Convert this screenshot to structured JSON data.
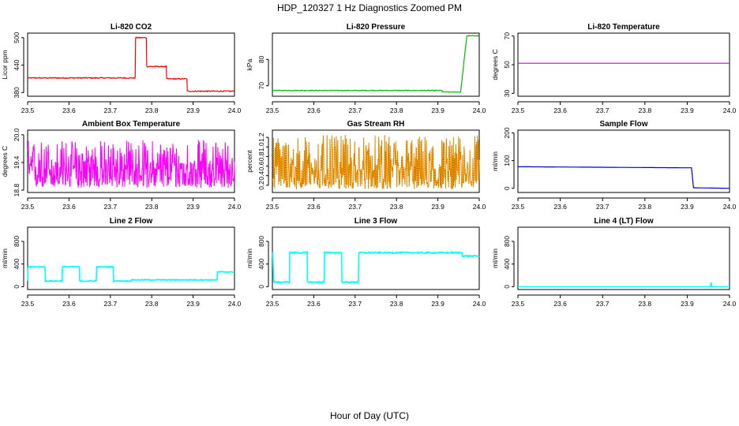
{
  "title": "HDP_120327  1 Hz Diagnostics Zoomed PM",
  "xlabel": "Hour of Day (UTC)",
  "chart_data": [
    {
      "type": "line",
      "title": "Li-820 CO2",
      "ylabel": "Licor ppm",
      "color": "#ff0000",
      "xlim": [
        23.5,
        24.0
      ],
      "ylim": [
        372,
        510
      ],
      "xticks": [
        "23.5",
        "23.6",
        "23.7",
        "23.8",
        "23.9",
        "24.0"
      ],
      "yticks": [
        "380",
        "440",
        "500"
      ],
      "ytick_values": [
        380,
        440,
        500
      ],
      "noise": 1.2,
      "series": [
        {
          "x": [
            23.5,
            23.76,
            23.761,
            23.787,
            23.788,
            23.835,
            23.836,
            23.885,
            23.886,
            24.0
          ],
          "y": [
            412,
            412,
            500,
            500,
            437,
            437,
            410,
            410,
            383,
            383
          ]
        }
      ]
    },
    {
      "type": "line",
      "title": "Li-820 Pressure",
      "ylabel": "kPa",
      "color": "#00bb00",
      "xlim": [
        23.5,
        24.0
      ],
      "ylim": [
        66,
        90
      ],
      "xticks": [
        "23.5",
        "23.6",
        "23.7",
        "23.8",
        "23.9",
        "24.0"
      ],
      "yticks": [
        "70",
        "80"
      ],
      "ytick_values": [
        70,
        80
      ],
      "noise": 0.12,
      "series": [
        {
          "x": [
            23.5,
            23.91,
            23.911,
            23.955,
            23.97,
            24.0
          ],
          "y": [
            68.2,
            68.2,
            67.6,
            67.6,
            89,
            89
          ]
        }
      ]
    },
    {
      "type": "line",
      "title": "Li-820 Temperature",
      "ylabel": "degrees C",
      "color": "#cc00cc",
      "xlim": [
        23.5,
        24.0
      ],
      "ylim": [
        28,
        72
      ],
      "xticks": [
        "23.5",
        "23.6",
        "23.7",
        "23.8",
        "23.9",
        "24.0"
      ],
      "yticks": [
        "30",
        "50",
        "70"
      ],
      "ytick_values": [
        30,
        50,
        70
      ],
      "noise": 0,
      "series": [
        {
          "x": [
            23.5,
            24.0
          ],
          "y": [
            51,
            51
          ]
        }
      ]
    },
    {
      "type": "line",
      "title": "Ambient Box Temperature",
      "ylabel": "degrees C",
      "color": "#ff00ff",
      "xlim": [
        23.5,
        24.0
      ],
      "ylim": [
        18.75,
        20.1
      ],
      "xticks": [
        "23.5",
        "23.6",
        "23.7",
        "23.8",
        "23.9",
        "24.0"
      ],
      "yticks": [
        "18.8",
        "19.4",
        "20.0"
      ],
      "ytick_values": [
        18.8,
        19.4,
        20.0
      ],
      "noise_band": [
        18.85,
        19.9
      ],
      "noise_center": 19.25,
      "series": [
        {
          "x": [
            23.5,
            24.0
          ],
          "y": [
            19.25,
            19.25
          ]
        }
      ]
    },
    {
      "type": "line",
      "title": "Gas Stream RH",
      "ylabel": "percent",
      "color": "#ff9900",
      "xlim": [
        23.5,
        24.0
      ],
      "ylim": [
        0.05,
        1.35
      ],
      "xticks": [
        "23.5",
        "23.6",
        "23.7",
        "23.8",
        "23.9",
        "24.0"
      ],
      "yticks": [
        "0.2",
        "0.4",
        "0.6",
        "0.8",
        "1.0",
        "1.2"
      ],
      "ytick_values": [
        0.2,
        0.4,
        0.6,
        0.8,
        1.0,
        1.2
      ],
      "noise_band": [
        0.12,
        1.25
      ],
      "noise_center": 0.5,
      "points": true,
      "series": [
        {
          "x": [
            23.5,
            24.0
          ],
          "y": [
            0.5,
            0.5
          ]
        }
      ]
    },
    {
      "type": "line",
      "title": "Sample Flow",
      "ylabel": "ml/min",
      "color": "#0000cc",
      "xlim": [
        23.5,
        24.0
      ],
      "ylim": [
        -15,
        210
      ],
      "xticks": [
        "23.5",
        "23.6",
        "23.7",
        "23.8",
        "23.9",
        "24.0"
      ],
      "yticks": [
        "0",
        "100",
        "200"
      ],
      "ytick_values": [
        0,
        100,
        200
      ],
      "noise": 1.5,
      "series": [
        {
          "x": [
            23.5,
            23.91,
            23.915,
            24.0
          ],
          "y": [
            78,
            74,
            2,
            0
          ]
        }
      ]
    },
    {
      "type": "line",
      "title": "Line 2 Flow",
      "ylabel": "ml/min",
      "color": "#00ffff",
      "xlim": [
        23.5,
        24.0
      ],
      "ylim": [
        -50,
        1050
      ],
      "xticks": [
        "23.5",
        "23.6",
        "23.7",
        "23.8",
        "23.9",
        "24.0"
      ],
      "yticks": [
        "0",
        "400",
        "800"
      ],
      "ytick_values": [
        0,
        400,
        800
      ],
      "noise": 8,
      "series": [
        {
          "x": [
            23.5,
            23.501,
            23.542,
            23.543,
            23.583,
            23.584,
            23.625,
            23.626,
            23.666,
            23.667,
            23.707,
            23.708,
            23.75,
            23.751,
            23.958,
            23.959,
            24.0
          ],
          "y": [
            100,
            350,
            350,
            100,
            100,
            350,
            350,
            100,
            100,
            350,
            350,
            100,
            100,
            120,
            120,
            260,
            260
          ]
        }
      ]
    },
    {
      "type": "line",
      "title": "Line 3 Flow",
      "ylabel": "ml/min",
      "color": "#00ffff",
      "xlim": [
        23.5,
        24.0
      ],
      "ylim": [
        -50,
        1050
      ],
      "xticks": [
        "23.5",
        "23.6",
        "23.7",
        "23.8",
        "23.9",
        "24.0"
      ],
      "yticks": [
        "0",
        "400",
        "800"
      ],
      "ytick_values": [
        0,
        400,
        800
      ],
      "noise": 12,
      "series": [
        {
          "x": [
            23.5,
            23.501,
            23.503,
            23.541,
            23.542,
            23.584,
            23.585,
            23.625,
            23.626,
            23.667,
            23.668,
            23.708,
            23.709,
            23.958,
            23.96,
            24.0
          ],
          "y": [
            600,
            600,
            80,
            80,
            600,
            600,
            80,
            80,
            600,
            600,
            80,
            80,
            600,
            600,
            540,
            540
          ]
        }
      ]
    },
    {
      "type": "line",
      "title": "Line 4 (LT) Flow",
      "ylabel": "ml/min",
      "color": "#00ffff",
      "xlim": [
        23.5,
        24.0
      ],
      "ylim": [
        -50,
        1050
      ],
      "xticks": [
        "23.5",
        "23.6",
        "23.7",
        "23.8",
        "23.9",
        "24.0"
      ],
      "yticks": [
        "0",
        "400",
        "800"
      ],
      "ytick_values": [
        0,
        400,
        800
      ],
      "noise": 0,
      "series": [
        {
          "x": [
            23.5,
            23.955,
            23.956,
            23.957,
            23.958,
            24.0
          ],
          "y": [
            0,
            0,
            70,
            70,
            0,
            0
          ]
        }
      ]
    }
  ]
}
